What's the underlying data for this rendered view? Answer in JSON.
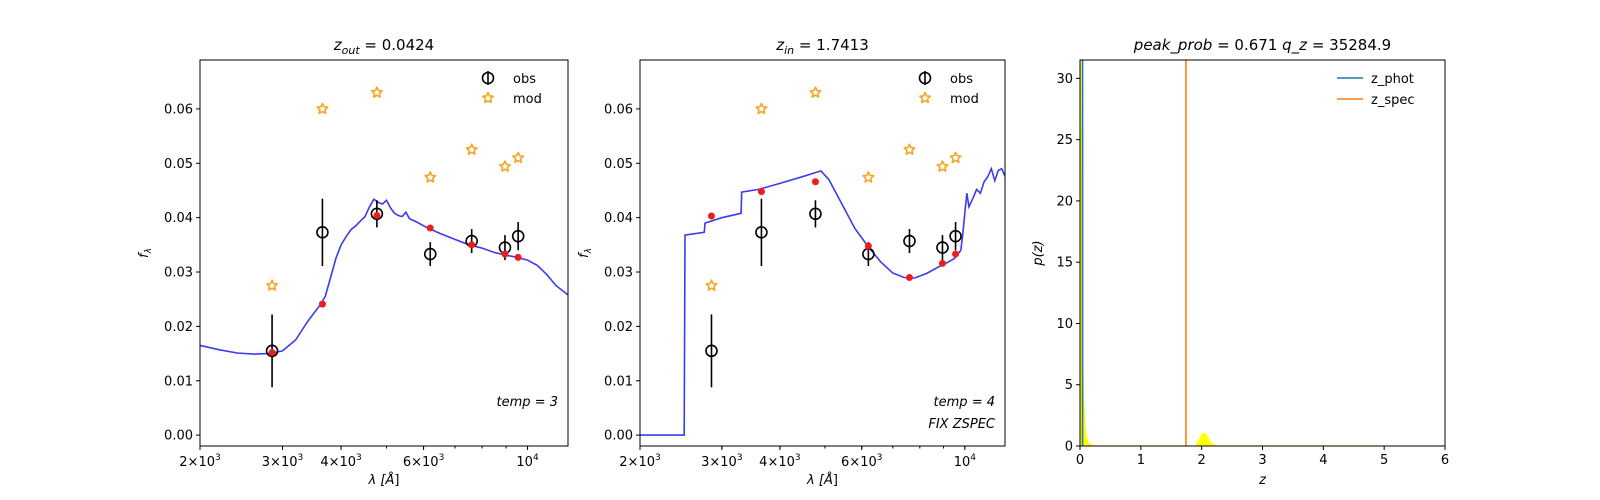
{
  "chart_data": [
    {
      "type": "scatter",
      "title": "z_out = 0.0424",
      "title_parts": [
        "z",
        "out",
        " = 0.0424"
      ],
      "xlabel_parts": [
        "λ [",
        "Å",
        "]"
      ],
      "ylabel_parts": [
        "f",
        "λ"
      ],
      "xscale": "log",
      "xlim": [
        2000,
        12200
      ],
      "ylim": [
        -0.002,
        0.069
      ],
      "x_ticks": [
        {
          "v": 2000,
          "m": "2",
          "e": "3"
        },
        {
          "v": 3000,
          "m": "3",
          "e": "3"
        },
        {
          "v": 4000,
          "m": "4",
          "e": "3"
        },
        {
          "v": 6000,
          "m": "6",
          "e": "3"
        },
        {
          "v": 10000,
          "m": "",
          "e": "4"
        }
      ],
      "y_ticks": [
        "0.00",
        "0.01",
        "0.02",
        "0.03",
        "0.04",
        "0.05",
        "0.06"
      ],
      "legend": {
        "position": "top-right",
        "entries": [
          "obs",
          "mod"
        ]
      },
      "annotations": [
        "temp = 3"
      ],
      "obs": [
        {
          "x": 2850,
          "y": 0.0155,
          "err": 0.0067
        },
        {
          "x": 3650,
          "y": 0.0373,
          "err": 0.0062
        },
        {
          "x": 4770,
          "y": 0.0407,
          "err": 0.0025
        },
        {
          "x": 6200,
          "y": 0.0333,
          "err": 0.0022
        },
        {
          "x": 7600,
          "y": 0.0357,
          "err": 0.0022
        },
        {
          "x": 8950,
          "y": 0.0345,
          "err": 0.0023
        },
        {
          "x": 9550,
          "y": 0.0366,
          "err": 0.0026
        }
      ],
      "mod": [
        {
          "x": 2850,
          "y": 0.0275
        },
        {
          "x": 3650,
          "y": 0.06
        },
        {
          "x": 4770,
          "y": 0.063
        },
        {
          "x": 6200,
          "y": 0.0474
        },
        {
          "x": 7600,
          "y": 0.0525
        },
        {
          "x": 8950,
          "y": 0.0494
        },
        {
          "x": 9550,
          "y": 0.051
        }
      ],
      "model_points": [
        {
          "x": 2850,
          "y": 0.0152
        },
        {
          "x": 3650,
          "y": 0.0241
        },
        {
          "x": 4770,
          "y": 0.0404
        },
        {
          "x": 6200,
          "y": 0.0381
        },
        {
          "x": 7600,
          "y": 0.035
        },
        {
          "x": 8950,
          "y": 0.0333
        },
        {
          "x": 9550,
          "y": 0.0327
        }
      ],
      "sed": [
        [
          2000,
          0.0165
        ],
        [
          2200,
          0.0157
        ],
        [
          2400,
          0.0151
        ],
        [
          2600,
          0.0149
        ],
        [
          2800,
          0.015
        ],
        [
          3000,
          0.0155
        ],
        [
          3200,
          0.0175
        ],
        [
          3400,
          0.021
        ],
        [
          3600,
          0.0238
        ],
        [
          3700,
          0.0255
        ],
        [
          3800,
          0.029
        ],
        [
          3900,
          0.0325
        ],
        [
          4000,
          0.035
        ],
        [
          4100,
          0.0365
        ],
        [
          4200,
          0.0378
        ],
        [
          4300,
          0.0385
        ],
        [
          4400,
          0.0394
        ],
        [
          4500,
          0.0402
        ],
        [
          4600,
          0.042
        ],
        [
          4700,
          0.0434
        ],
        [
          4800,
          0.0428
        ],
        [
          4900,
          0.0425
        ],
        [
          5000,
          0.0432
        ],
        [
          5100,
          0.0418
        ],
        [
          5200,
          0.0408
        ],
        [
          5300,
          0.0404
        ],
        [
          5400,
          0.0402
        ],
        [
          5500,
          0.041
        ],
        [
          5600,
          0.0398
        ],
        [
          5800,
          0.0392
        ],
        [
          6000,
          0.0385
        ],
        [
          6200,
          0.0379
        ],
        [
          6500,
          0.0371
        ],
        [
          7000,
          0.036
        ],
        [
          7500,
          0.035
        ],
        [
          8000,
          0.0344
        ],
        [
          8500,
          0.0336
        ],
        [
          9000,
          0.0331
        ],
        [
          9500,
          0.0327
        ],
        [
          10000,
          0.0322
        ],
        [
          10500,
          0.0312
        ],
        [
          11000,
          0.0295
        ],
        [
          11500,
          0.0275
        ],
        [
          12200,
          0.0258
        ]
      ]
    },
    {
      "type": "scatter",
      "title": "z_in = 1.7413",
      "title_parts": [
        "z",
        "in",
        " = 1.7413"
      ],
      "xlabel_parts": [
        "λ [",
        "Å",
        "]"
      ],
      "ylabel_parts": [
        "f",
        "λ"
      ],
      "xscale": "log",
      "xlim": [
        2000,
        12200
      ],
      "ylim": [
        -0.002,
        0.069
      ],
      "x_ticks": [
        {
          "v": 2000,
          "m": "2",
          "e": "3"
        },
        {
          "v": 3000,
          "m": "3",
          "e": "3"
        },
        {
          "v": 4000,
          "m": "4",
          "e": "3"
        },
        {
          "v": 6000,
          "m": "6",
          "e": "3"
        },
        {
          "v": 10000,
          "m": "",
          "e": "4"
        }
      ],
      "y_ticks": [
        "0.00",
        "0.01",
        "0.02",
        "0.03",
        "0.04",
        "0.05",
        "0.06"
      ],
      "legend": {
        "position": "top-right",
        "entries": [
          "obs",
          "mod"
        ]
      },
      "annotations": [
        "temp = 4",
        "FIX ZSPEC"
      ],
      "obs": [
        {
          "x": 2850,
          "y": 0.0155,
          "err": 0.0067
        },
        {
          "x": 3650,
          "y": 0.0373,
          "err": 0.0062
        },
        {
          "x": 4770,
          "y": 0.0407,
          "err": 0.0025
        },
        {
          "x": 6200,
          "y": 0.0333,
          "err": 0.0022
        },
        {
          "x": 7600,
          "y": 0.0357,
          "err": 0.0022
        },
        {
          "x": 8950,
          "y": 0.0345,
          "err": 0.0023
        },
        {
          "x": 9550,
          "y": 0.0366,
          "err": 0.0026
        }
      ],
      "mod": [
        {
          "x": 2850,
          "y": 0.0275
        },
        {
          "x": 3650,
          "y": 0.06
        },
        {
          "x": 4770,
          "y": 0.063
        },
        {
          "x": 6200,
          "y": 0.0474
        },
        {
          "x": 7600,
          "y": 0.0525
        },
        {
          "x": 8950,
          "y": 0.0494
        },
        {
          "x": 9550,
          "y": 0.051
        }
      ],
      "model_points": [
        {
          "x": 2850,
          "y": 0.0403
        },
        {
          "x": 3650,
          "y": 0.0448
        },
        {
          "x": 4770,
          "y": 0.0466
        },
        {
          "x": 6200,
          "y": 0.0348
        },
        {
          "x": 7600,
          "y": 0.029
        },
        {
          "x": 8950,
          "y": 0.0316
        },
        {
          "x": 9550,
          "y": 0.0333
        }
      ],
      "sed": [
        [
          2000,
          0.0
        ],
        [
          2490,
          0.0
        ],
        [
          2500,
          0.0368
        ],
        [
          2750,
          0.0373
        ],
        [
          2760,
          0.039
        ],
        [
          3000,
          0.04
        ],
        [
          3300,
          0.0408
        ],
        [
          3310,
          0.0447
        ],
        [
          3600,
          0.0452
        ],
        [
          4000,
          0.0463
        ],
        [
          4500,
          0.0476
        ],
        [
          4900,
          0.0486
        ],
        [
          5100,
          0.047
        ],
        [
          5400,
          0.043
        ],
        [
          5800,
          0.038
        ],
        [
          6200,
          0.0346
        ],
        [
          6600,
          0.0318
        ],
        [
          7000,
          0.0298
        ],
        [
          7400,
          0.029
        ],
        [
          7800,
          0.0289
        ],
        [
          8300,
          0.0298
        ],
        [
          8800,
          0.031
        ],
        [
          9200,
          0.0318
        ],
        [
          9500,
          0.0325
        ],
        [
          9800,
          0.034
        ],
        [
          9900,
          0.037
        ],
        [
          10000,
          0.041
        ],
        [
          10100,
          0.0445
        ],
        [
          10200,
          0.042
        ],
        [
          10400,
          0.0435
        ],
        [
          10600,
          0.0452
        ],
        [
          10800,
          0.0445
        ],
        [
          11000,
          0.0466
        ],
        [
          11200,
          0.0475
        ],
        [
          11400,
          0.049
        ],
        [
          11600,
          0.0468
        ],
        [
          11800,
          0.0487
        ],
        [
          12000,
          0.049
        ],
        [
          12200,
          0.0476
        ]
      ]
    },
    {
      "type": "line",
      "title_left_parts": [
        "peak",
        "_",
        "prob",
        " = 0.671"
      ],
      "title_right_parts": [
        "q",
        "_",
        "z",
        " = 35284.9"
      ],
      "xlabel": "z",
      "ylabel": "p(z)",
      "xlim": [
        0,
        6
      ],
      "ylim": [
        0,
        31.5
      ],
      "x_ticks": [
        "0",
        "1",
        "2",
        "3",
        "4",
        "5",
        "6"
      ],
      "y_ticks": [
        "0",
        "5",
        "10",
        "15",
        "20",
        "25",
        "30"
      ],
      "legend": {
        "position": "top-right",
        "entries": [
          "z_phot",
          "z_spec"
        ]
      },
      "z_spec": 1.7413,
      "colors": {
        "z_phot": "#1f77b4",
        "z_spec": "#ff7f0e",
        "fill": "#ffff00"
      },
      "z_phot_curve": [
        [
          0.0,
          35.0
        ],
        [
          0.01,
          33.0
        ],
        [
          0.02,
          25.0
        ],
        [
          0.03,
          16.0
        ],
        [
          0.04,
          9.0
        ],
        [
          0.05,
          5.5
        ],
        [
          0.06,
          3.5
        ],
        [
          0.08,
          1.6
        ],
        [
          0.1,
          0.8
        ],
        [
          0.13,
          0.3
        ],
        [
          0.17,
          0.1
        ],
        [
          0.25,
          0.02
        ],
        [
          0.5,
          0.0
        ],
        [
          1.0,
          0.0
        ],
        [
          1.9,
          0.0
        ],
        [
          1.95,
          0.4
        ],
        [
          2.0,
          0.9
        ],
        [
          2.04,
          1.05
        ],
        [
          2.08,
          0.9
        ],
        [
          2.13,
          0.4
        ],
        [
          2.2,
          0.05
        ],
        [
          2.3,
          0.0
        ],
        [
          3.0,
          0.0
        ],
        [
          4.0,
          0.0
        ],
        [
          5.0,
          0.0
        ]
      ]
    }
  ]
}
